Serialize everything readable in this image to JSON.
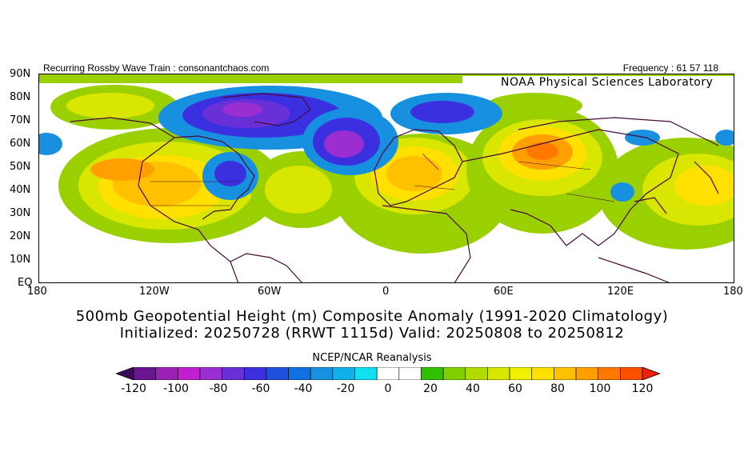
{
  "header": {
    "left_text": "Recurring Rossby Wave Train : consonantchaos.com",
    "right_text": "Frequency : 61 57 118",
    "agency": "NOAA Physical Sciences Laboratory"
  },
  "map": {
    "lat_labels": [
      "90N",
      "80N",
      "70N",
      "60N",
      "50N",
      "40N",
      "30N",
      "20N",
      "10N",
      "EQ"
    ],
    "lon_labels": [
      "180",
      "120W",
      "60W",
      "0",
      "60E",
      "120E",
      "180"
    ],
    "colors": {
      "land_outline": "#4a0a3a",
      "ocean": "#ffffff",
      "accent_green": "#9bd000"
    }
  },
  "title": {
    "line1": "500mb Geopotential Height (m) Composite Anomaly (1991-2020 Climatology)",
    "line2": "Initialized: 20250728 (RRWT 1115d) Valid: 20250808 to 20250812"
  },
  "source_label": "NCEP/NCAR Reanalysis",
  "colorbar": {
    "labels": [
      "-120",
      "-100",
      "-80",
      "-60",
      "-40",
      "-20",
      "0",
      "20",
      "40",
      "60",
      "80",
      "100",
      "120"
    ],
    "colors": [
      "#3c0a5a",
      "#6a1590",
      "#9a20b4",
      "#c020d0",
      "#9a2ed0",
      "#6a30d8",
      "#3a30e0",
      "#2050e0",
      "#1070e0",
      "#1890e0",
      "#10b0e8",
      "#10e0f0",
      "#ffffff",
      "#ffffff",
      "#30c000",
      "#80d000",
      "#b0dc00",
      "#d8e600",
      "#f0f000",
      "#ffe000",
      "#ffc000",
      "#ffa000",
      "#ff7800",
      "#ff5000",
      "#f02010"
    ]
  }
}
